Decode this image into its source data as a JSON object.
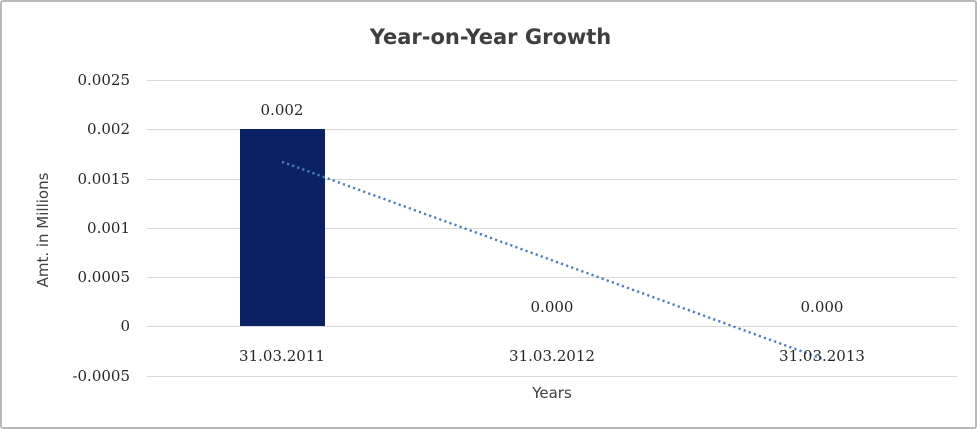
{
  "chart_data": {
    "type": "bar",
    "title": "Year-on-Year Growth",
    "xlabel": "Years",
    "ylabel": "Amt. in Millions",
    "categories": [
      "31.03.2011",
      "31.03.2012",
      "31.03.2013"
    ],
    "series": [
      {
        "name": "Year-on-Year Growth",
        "values": [
          0.002,
          0.0,
          0.0
        ],
        "data_labels": [
          "0.002",
          "0.000",
          "0.000"
        ],
        "color": "#0a2263"
      }
    ],
    "trendline": {
      "type": "linear",
      "style": "dotted",
      "color": "#4a7ebb",
      "start_category_index": 0,
      "start_value": 0.00167,
      "end_category_index": 2,
      "end_value": -0.00033
    },
    "y_ticks": [
      -0.0005,
      0,
      0.0005,
      0.001,
      0.0015,
      0.002,
      0.0025
    ],
    "y_tick_labels": [
      "-0.0005",
      "0",
      "0.0005",
      "0.001",
      "0.0015",
      "0.002",
      "0.0025"
    ],
    "ylim": [
      -0.0005,
      0.0025
    ],
    "grid": true,
    "legend_position": "none",
    "colors": {
      "bar": "#0a2263",
      "trendline": "#4a7ebb",
      "gridline": "#d9d9d9",
      "tick_text": "#262626",
      "title_text": "#3f3f3f",
      "frame_border": "#b9b9b9",
      "background": "#ffffff"
    }
  }
}
